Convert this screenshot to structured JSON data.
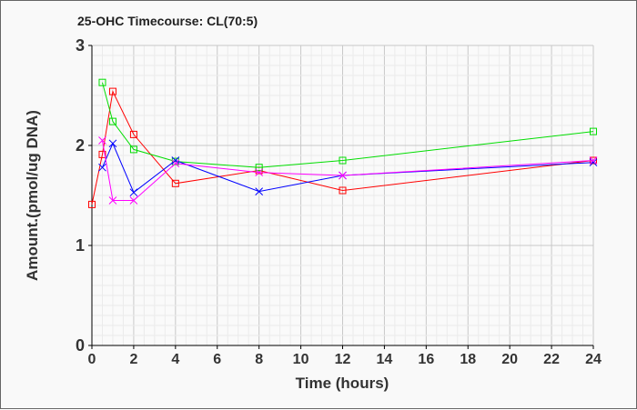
{
  "chart_data": {
    "type": "line",
    "title": "25-OHC Timecourse: CL(70:5)",
    "xlabel": "Time (hours)",
    "ylabel": "Amount.(pmol/ug DNA)",
    "xlim": [
      0,
      24
    ],
    "ylim": [
      0,
      3
    ],
    "xticks": [
      0,
      2,
      4,
      6,
      8,
      10,
      12,
      14,
      16,
      18,
      20,
      22,
      24
    ],
    "yticks": [
      0,
      1,
      2,
      3
    ],
    "grid": true,
    "series": [
      {
        "name": "red",
        "color": "#ff0000",
        "marker": "square",
        "x": [
          0,
          0.5,
          1,
          2,
          4,
          8,
          12,
          24
        ],
        "y": [
          1.41,
          1.91,
          2.54,
          2.11,
          1.62,
          1.75,
          1.55,
          1.85
        ]
      },
      {
        "name": "green",
        "color": "#00dd00",
        "marker": "square",
        "x": [
          0.5,
          1,
          2,
          4,
          8,
          12,
          24
        ],
        "y": [
          2.63,
          2.24,
          1.96,
          1.84,
          1.78,
          1.85,
          2.14
        ]
      },
      {
        "name": "blue",
        "color": "#0000ff",
        "marker": "x",
        "x": [
          0.5,
          1,
          2,
          4,
          8,
          12,
          24
        ],
        "y": [
          1.78,
          2.02,
          1.53,
          1.85,
          1.54,
          1.7,
          1.83
        ]
      },
      {
        "name": "magenta",
        "color": "#ff00ff",
        "marker": "x",
        "x": [
          0.5,
          1,
          2,
          4,
          8,
          12,
          24
        ],
        "y": [
          2.05,
          1.45,
          1.45,
          1.82,
          1.73,
          1.7,
          1.85
        ]
      }
    ]
  }
}
